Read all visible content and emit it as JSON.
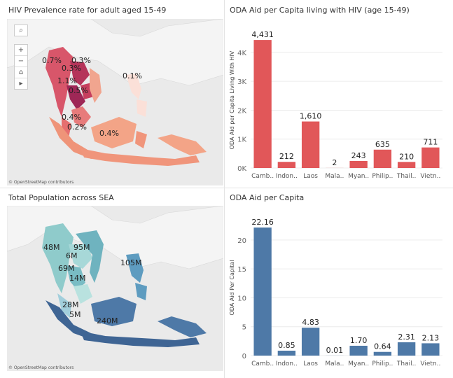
{
  "maps": [
    {
      "title": "HIV Prevalence rate for adult aged 15-49",
      "credit": "© OpenStreetMap contributors",
      "controls": [
        "search-icon",
        "zoom-in-icon",
        "zoom-out-icon",
        "home-icon",
        "play-icon"
      ],
      "control_glyphs": [
        "⌕",
        "+",
        "−",
        "⌂",
        "▸"
      ],
      "labels": [
        "0.7%",
        "0.3%",
        "0.3%",
        "0.1%",
        "1.1%",
        "0.5%",
        "0.4%",
        "0.2%",
        "0.4%"
      ],
      "color": "#e05a5a"
    },
    {
      "title": "Total Population across SEA",
      "credit": "© OpenStreetMap contributors",
      "labels": [
        "48M",
        "95M",
        "6M",
        "69M",
        "14M",
        "105M",
        "28M",
        "5M",
        "240M"
      ],
      "color": "#4e79a7"
    }
  ],
  "chart_data": [
    {
      "type": "bar",
      "title": "ODA Aid per Capita living with HIV (age 15-49)",
      "ylabel": "ODA Aid per Capita Living With HIV",
      "categories": [
        "Camb..",
        "Indon..",
        "Laos",
        "Mala..",
        "Myan..",
        "Philip..",
        "Thail..",
        "Vietn.."
      ],
      "values": [
        4431,
        212,
        1610,
        2,
        243,
        635,
        210,
        711
      ],
      "value_labels": [
        "4,431",
        "212",
        "1,610",
        "2",
        "243",
        "635",
        "210",
        "711"
      ],
      "yticks": [
        0,
        1000,
        2000,
        3000,
        4000
      ],
      "ytick_labels": [
        "0K",
        "1K",
        "2K",
        "3K",
        "4K"
      ],
      "ylim": [
        0,
        4700
      ],
      "color": "#e15759",
      "grid": true
    },
    {
      "type": "bar",
      "title": "ODA Aid per Capita",
      "ylabel": "ODA Aid Per Capital",
      "categories": [
        "Camb..",
        "Indon..",
        "Laos",
        "Mala..",
        "Myan..",
        "Philip..",
        "Thail..",
        "Vietn.."
      ],
      "values": [
        22.16,
        0.85,
        4.83,
        0.01,
        1.7,
        0.64,
        2.31,
        2.13
      ],
      "value_labels": [
        "22.16",
        "0.85",
        "4.83",
        "0.01",
        "1.70",
        "0.64",
        "2.31",
        "2.13"
      ],
      "yticks": [
        0,
        5,
        10,
        15,
        20
      ],
      "ytick_labels": [
        "0",
        "5",
        "10",
        "15",
        "20"
      ],
      "ylim": [
        0,
        23.5
      ],
      "color": "#4e79a7",
      "grid": true
    }
  ]
}
